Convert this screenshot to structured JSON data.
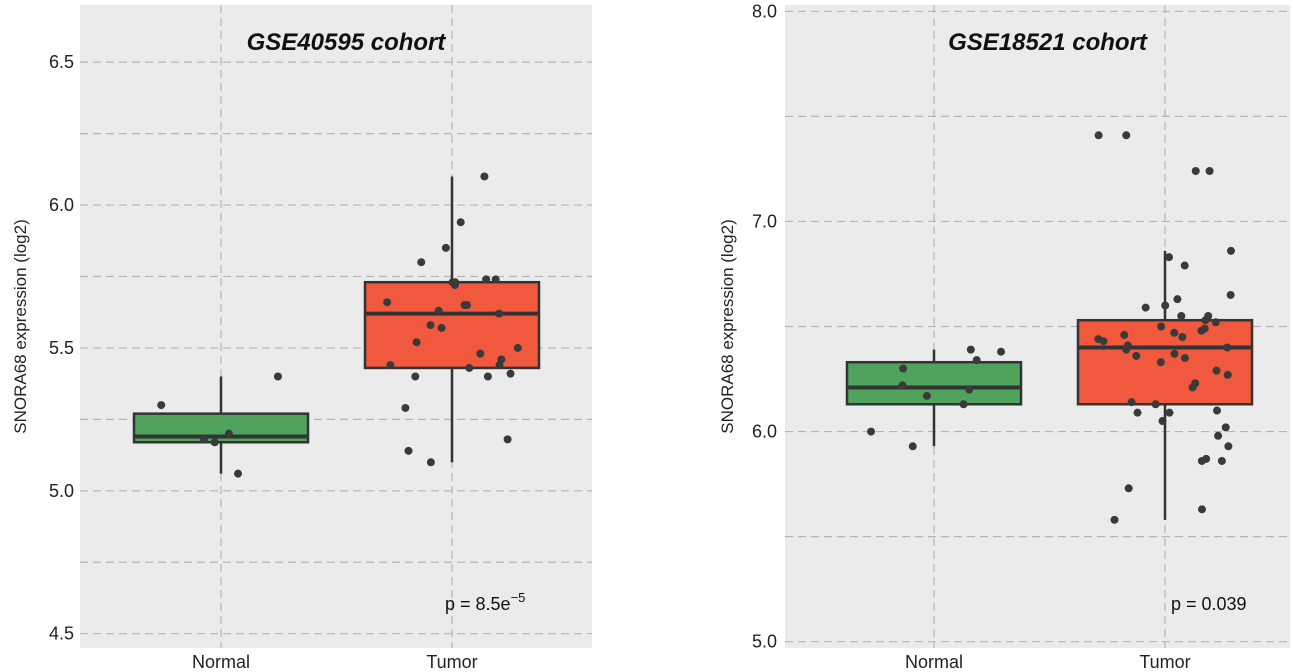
{
  "chart_data": [
    {
      "type": "box",
      "title": "GSE40595 cohort",
      "xlabel": "",
      "ylabel": "SNORA68 expression (log2)",
      "ylim": [
        4.45,
        6.7
      ],
      "yticks": [
        4.5,
        5.0,
        5.5,
        6.0,
        6.5
      ],
      "ytick_labels": [
        "4.5",
        "5.0",
        "5.5",
        "6.0",
        "6.5"
      ],
      "grid": true,
      "categories": [
        "Normal",
        "Tumor"
      ],
      "annotation": {
        "text": "p = 8.5e",
        "sup": "−5"
      },
      "series": [
        {
          "category": "Normal",
          "color": "#4fa35c",
          "min": 5.06,
          "q1": 5.17,
          "median": 5.19,
          "q3": 5.27,
          "max": 5.4,
          "points": [
            5.4,
            5.3,
            5.2,
            5.18,
            5.17,
            5.06
          ]
        },
        {
          "category": "Tumor",
          "color": "#f0593e",
          "min": 5.1,
          "q1": 5.43,
          "median": 5.62,
          "q3": 5.73,
          "max": 6.1,
          "points": [
            6.1,
            5.94,
            5.85,
            5.8,
            5.74,
            5.74,
            5.73,
            5.73,
            5.72,
            5.66,
            5.65,
            5.65,
            5.63,
            5.62,
            5.58,
            5.57,
            5.52,
            5.5,
            5.48,
            5.46,
            5.44,
            5.44,
            5.43,
            5.41,
            5.4,
            5.4,
            5.29,
            5.18,
            5.14,
            5.1
          ]
        }
      ]
    },
    {
      "type": "box",
      "title": "GSE18521 cohort",
      "xlabel": "",
      "ylabel": "SNORA68 expression (log2)",
      "ylim": [
        4.97,
        8.03
      ],
      "yticks": [
        5.0,
        6.0,
        7.0,
        8.0
      ],
      "ytick_labels": [
        "5.0",
        "6.0",
        "7.0",
        "8.0"
      ],
      "grid": true,
      "categories": [
        "Normal",
        "Tumor"
      ],
      "annotation": {
        "text": "p = 0.039",
        "sup": ""
      },
      "series": [
        {
          "category": "Normal",
          "color": "#4fa35c",
          "min": 5.93,
          "q1": 6.13,
          "median": 6.21,
          "q3": 6.33,
          "max": 6.39,
          "points": [
            6.39,
            6.38,
            6.34,
            6.3,
            6.22,
            6.2,
            6.17,
            6.13,
            6.0,
            5.93
          ]
        },
        {
          "category": "Tumor",
          "color": "#f0593e",
          "min": 5.58,
          "q1": 6.13,
          "median": 6.4,
          "q3": 6.53,
          "max": 6.86,
          "points": [
            7.41,
            7.41,
            7.24,
            7.24,
            6.86,
            6.83,
            6.79,
            6.65,
            6.63,
            6.6,
            6.59,
            6.55,
            6.55,
            6.53,
            6.52,
            6.5,
            6.49,
            6.48,
            6.47,
            6.46,
            6.45,
            6.44,
            6.43,
            6.41,
            6.4,
            6.39,
            6.37,
            6.36,
            6.35,
            6.33,
            6.29,
            6.27,
            6.23,
            6.21,
            6.14,
            6.13,
            6.1,
            6.09,
            6.09,
            6.05,
            6.02,
            5.98,
            5.93,
            5.87,
            5.86,
            5.86,
            5.73,
            5.63,
            5.58
          ]
        }
      ]
    }
  ]
}
